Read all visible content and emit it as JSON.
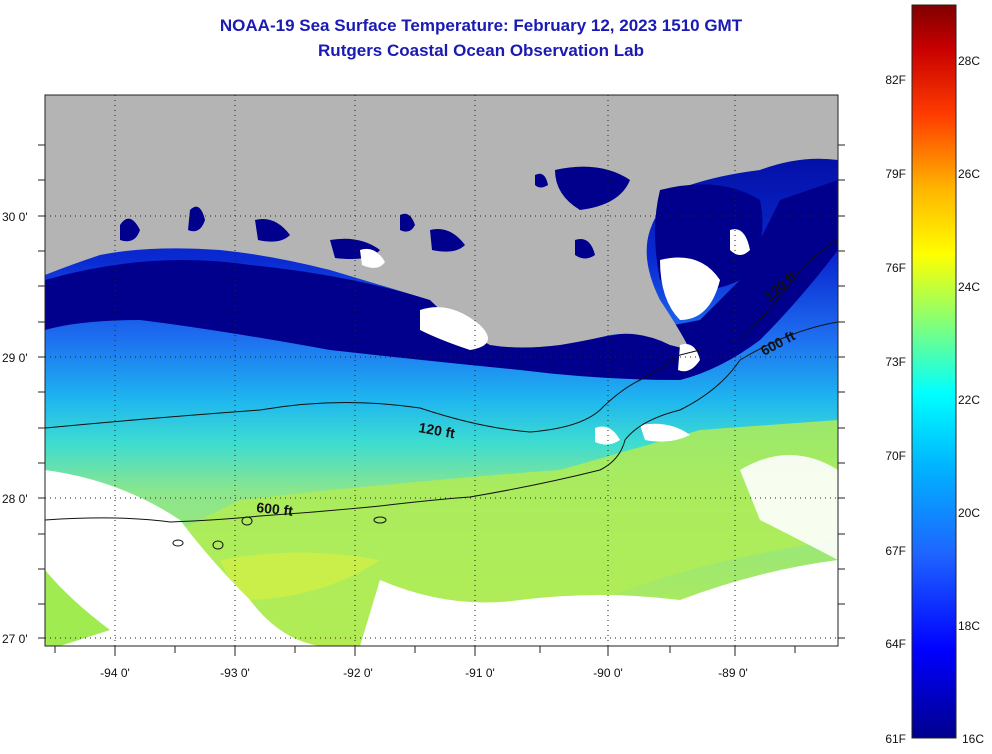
{
  "title": {
    "line1": "NOAA-19 Sea Surface Temperature:  February 12, 2023 1510 GMT",
    "line2": "Rutgers Coastal Ocean Observation Lab"
  },
  "map": {
    "lat_labels": [
      "30 0'",
      "29 0'",
      "28 0'",
      "27 0'"
    ],
    "lon_labels": [
      "-94 0'",
      "-93 0'",
      "-92 0'",
      "-91 0'",
      "-90 0'",
      "-89 0'"
    ],
    "contour_labels": [
      "120 ft",
      "600 ft",
      "120 ft",
      "600 ft"
    ]
  },
  "colorbar": {
    "f_labels": [
      "82F",
      "79F",
      "76F",
      "73F",
      "70F",
      "67F",
      "64F",
      "61F"
    ],
    "c_labels": [
      "28C",
      "26C",
      "24C",
      "22C",
      "20C",
      "18C",
      "16C"
    ]
  },
  "colors": {
    "title": "#1a1ab4",
    "land": "#b4b4b4",
    "cloud": "#ffffff",
    "coastal_cold": "#00008c",
    "mid": "#0a64ff",
    "warm": "#a0eb50"
  }
}
